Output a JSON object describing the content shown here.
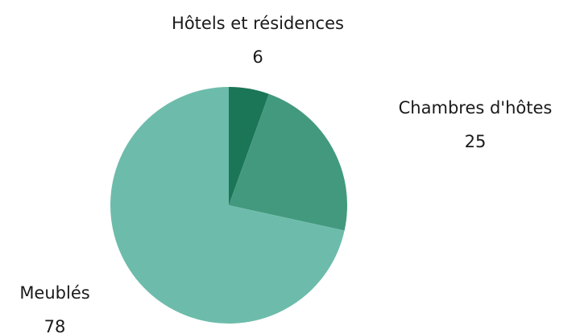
{
  "chart_data": {
    "type": "pie",
    "categories": [
      "Hôtels et résidences",
      "Chambres d'hôtes",
      "Meublés"
    ],
    "values": [
      6,
      25,
      78
    ],
    "colors": [
      "#1b7658",
      "#43997e",
      "#6dbcab"
    ]
  }
}
